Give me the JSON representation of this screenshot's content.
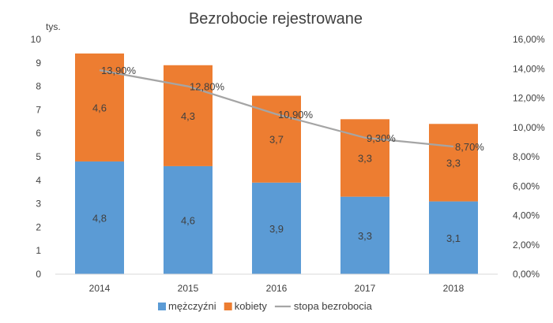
{
  "chart_data": {
    "type": "bar",
    "stacked": true,
    "title": "Bezrobocie rejestrowane",
    "y_unit_label": "tys.",
    "categories": [
      "2014",
      "2015",
      "2016",
      "2017",
      "2018"
    ],
    "ylim": [
      0,
      10
    ],
    "y_ticks": [
      "0",
      "1",
      "2",
      "3",
      "4",
      "5",
      "6",
      "7",
      "8",
      "9",
      "10"
    ],
    "y2lim": [
      0,
      16
    ],
    "y2_ticks": [
      "0,00%",
      "2,00%",
      "4,00%",
      "6,00%",
      "8,00%",
      "10,00%",
      "12,00%",
      "14,00%",
      "16,00%"
    ],
    "series": [
      {
        "name": "mężczyźni",
        "type": "bar",
        "color": "#5b9bd5",
        "values": [
          4.8,
          4.6,
          3.9,
          3.3,
          3.1
        ],
        "labels": [
          "4,8",
          "4,6",
          "3,9",
          "3,3",
          "3,1"
        ]
      },
      {
        "name": "kobiety",
        "type": "bar",
        "color": "#ed7d31",
        "values": [
          4.6,
          4.3,
          3.7,
          3.3,
          3.3
        ],
        "labels": [
          "4,6",
          "4,3",
          "3,7",
          "3,3",
          "3,3"
        ]
      },
      {
        "name": "stopa bezrobocia",
        "type": "line",
        "axis": "secondary",
        "color": "#a5a5a5",
        "values": [
          13.9,
          12.8,
          10.9,
          9.3,
          8.7
        ],
        "labels": [
          "13,90%",
          "12,80%",
          "10,90%",
          "9,30%",
          "8,70%"
        ]
      }
    ],
    "legend_position": "bottom",
    "grid": false
  }
}
